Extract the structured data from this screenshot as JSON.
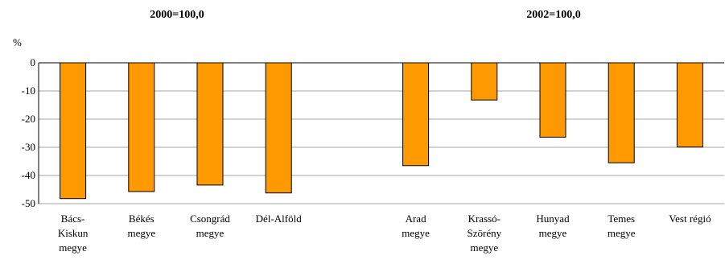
{
  "chart_data": {
    "type": "bar",
    "group_titles": [
      "2000=100,0",
      "2002=100,0"
    ],
    "ylabel": "%",
    "ylim": [
      -50,
      0
    ],
    "yticks": [
      "0",
      "-10",
      "-20",
      "-30",
      "-40",
      "-50"
    ],
    "grid": true,
    "legend": "none",
    "bar_color": "#ff9900",
    "categories": [
      "Bács-Kiskun megye",
      "Békés megye",
      "Csongrád megye",
      "Dél-Alföld",
      "",
      "Arad megye",
      "Krassó-Szörény megye",
      "Hunyad megye",
      "Temes megye",
      "Vest régió"
    ],
    "category_lines": [
      [
        "Bács-",
        "Kiskun",
        "megye"
      ],
      [
        "Békés",
        "megye"
      ],
      [
        "Csongrád",
        "megye"
      ],
      [
        "Dél-Alföld"
      ],
      [],
      [
        "Arad",
        "megye"
      ],
      [
        "Krassó-",
        "Szörény",
        "megye"
      ],
      [
        "Hunyad",
        "megye"
      ],
      [
        "Temes",
        "megye"
      ],
      [
        "Vest régió"
      ]
    ],
    "values": [
      -48.2,
      -45.7,
      -43.4,
      -46.2,
      null,
      -36.5,
      -13.2,
      -26.4,
      -35.5,
      -29.9
    ]
  }
}
